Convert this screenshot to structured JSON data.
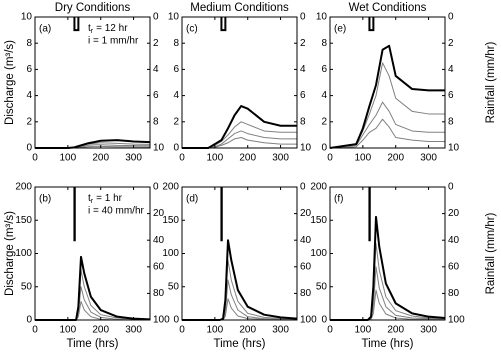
{
  "chart_data": [
    {
      "type": "line",
      "title": "Dry Conditions",
      "panel_label": "(a)",
      "ylabel": "Discharge (m³/s)",
      "duration_label": {
        "symbol": "t",
        "subscript": "r",
        "text": "= 12 hr"
      },
      "intensity_label": "i = 1 mm/hr",
      "x": [
        0,
        80,
        100,
        120,
        140,
        160,
        180,
        200,
        250,
        300,
        350
      ],
      "series": [
        {
          "color": "#000000",
          "line_width": 2,
          "values": [
            0,
            0,
            0,
            0.05,
            0.2,
            0.35,
            0.45,
            0.55,
            0.6,
            0.5,
            0.45
          ]
        },
        {
          "color": "#808080",
          "line_width": 1,
          "values": [
            0,
            0,
            0,
            0.02,
            0.15,
            0.3,
            0.35,
            0.4,
            0.35,
            0.3,
            0.28
          ]
        },
        {
          "color": "#808080",
          "line_width": 1,
          "values": [
            0,
            0,
            0,
            0.02,
            0.1,
            0.2,
            0.25,
            0.25,
            0.2,
            0.18,
            0.17
          ]
        },
        {
          "color": "#808080",
          "line_width": 1,
          "values": [
            0,
            0,
            0,
            0,
            0.05,
            0.1,
            0.12,
            0.12,
            0.1,
            0.09,
            0.08
          ]
        }
      ],
      "rain": {
        "start": 120,
        "end": 132,
        "intensity": 1
      },
      "xlim": [
        0,
        350
      ],
      "xticks": [
        0,
        100,
        200,
        300
      ],
      "ylim": [
        0,
        10
      ],
      "yticks": [
        0,
        2,
        4,
        6,
        8,
        10
      ],
      "y2lim": [
        10,
        0
      ],
      "y2ticks": [
        0,
        2,
        4,
        6,
        8,
        10
      ]
    },
    {
      "type": "line",
      "title": "Medium Conditions",
      "panel_label": "(c)",
      "x": [
        0,
        80,
        100,
        120,
        140,
        160,
        180,
        200,
        250,
        300,
        350
      ],
      "series": [
        {
          "color": "#000000",
          "line_width": 2,
          "values": [
            0,
            0,
            0.3,
            0.6,
            1.5,
            2.5,
            3.2,
            3.0,
            2.0,
            1.7,
            1.7
          ]
        },
        {
          "color": "#808080",
          "line_width": 1,
          "values": [
            0,
            0,
            0.2,
            0.5,
            1.0,
            1.6,
            2.0,
            1.8,
            1.3,
            1.2,
            1.2
          ]
        },
        {
          "color": "#808080",
          "line_width": 1,
          "values": [
            0,
            0,
            0.1,
            0.3,
            0.7,
            1.1,
            1.3,
            1.1,
            0.8,
            0.7,
            0.7
          ]
        },
        {
          "color": "#808080",
          "line_width": 1,
          "values": [
            0,
            0,
            0.05,
            0.2,
            0.4,
            0.7,
            0.8,
            0.6,
            0.4,
            0.3,
            0.3
          ]
        }
      ],
      "rain": {
        "start": 120,
        "end": 132,
        "intensity": 1
      },
      "xlim": [
        0,
        350
      ],
      "xticks": [
        0,
        100,
        200,
        300
      ],
      "ylim": [
        0,
        10
      ],
      "yticks": [
        0,
        2,
        4,
        6,
        8,
        10
      ],
      "y2lim": [
        10,
        0
      ],
      "y2ticks": [
        0,
        2,
        4,
        6,
        8,
        10
      ]
    },
    {
      "type": "line",
      "title": "Wet Conditions",
      "panel_label": "(e)",
      "y2label": "Rainfall (mm/hr)",
      "x": [
        0,
        80,
        100,
        120,
        140,
        160,
        180,
        200,
        250,
        300,
        350
      ],
      "series": [
        {
          "color": "#000000",
          "line_width": 2,
          "values": [
            0,
            0.3,
            1.5,
            3.2,
            4.8,
            7.5,
            7.8,
            5.5,
            4.5,
            4.4,
            4.4
          ]
        },
        {
          "color": "#808080",
          "line_width": 1,
          "values": [
            0,
            0.3,
            1.3,
            2.6,
            4.0,
            6.5,
            5.5,
            3.8,
            2.8,
            2.6,
            2.6
          ]
        },
        {
          "color": "#808080",
          "line_width": 1,
          "values": [
            0,
            0.2,
            1.0,
            1.8,
            2.5,
            3.5,
            2.8,
            1.8,
            1.3,
            1.2,
            1.2
          ]
        },
        {
          "color": "#808080",
          "line_width": 1,
          "values": [
            0,
            0.1,
            0.6,
            1.2,
            1.5,
            2.2,
            1.6,
            0.8,
            0.6,
            0.5,
            0.5
          ]
        }
      ],
      "rain": {
        "start": 120,
        "end": 132,
        "intensity": 1
      },
      "xlim": [
        0,
        350
      ],
      "xticks": [
        0,
        100,
        200,
        300
      ],
      "ylim": [
        0,
        10
      ],
      "yticks": [
        0,
        2,
        4,
        6,
        8,
        10
      ],
      "y2lim": [
        10,
        0
      ],
      "y2ticks": [
        0,
        2,
        4,
        6,
        8,
        10
      ]
    },
    {
      "type": "line",
      "panel_label": "(b)",
      "ylabel": "Discharge (m³/s)",
      "xlabel": "Time (hrs)",
      "duration_label": {
        "symbol": "t",
        "subscript": "r",
        "text": "= 1 hr"
      },
      "intensity_label": "i = 40 mm/hr",
      "x": [
        0,
        100,
        115,
        125,
        132,
        140,
        150,
        170,
        200,
        250,
        300,
        350
      ],
      "series": [
        {
          "color": "#000000",
          "line_width": 2,
          "values": [
            0,
            0,
            0,
            0,
            20,
            95,
            70,
            35,
            15,
            5,
            2,
            1
          ]
        },
        {
          "color": "#808080",
          "line_width": 1,
          "values": [
            0,
            0,
            0,
            0,
            15,
            75,
            50,
            22,
            8,
            3,
            1,
            0
          ]
        },
        {
          "color": "#808080",
          "line_width": 1,
          "values": [
            0,
            0,
            0,
            0,
            10,
            50,
            30,
            12,
            4,
            1,
            0,
            0
          ]
        },
        {
          "color": "#808080",
          "line_width": 1,
          "values": [
            0,
            0,
            0,
            0,
            5,
            28,
            15,
            5,
            1,
            0,
            0,
            0
          ]
        }
      ],
      "rain": {
        "start": 120,
        "end": 121,
        "intensity": 40
      },
      "xlim": [
        0,
        350
      ],
      "xticks": [
        0,
        100,
        200,
        300
      ],
      "ylim": [
        0,
        200
      ],
      "yticks": [
        0,
        50,
        100,
        150,
        200
      ],
      "y2lim": [
        100,
        0
      ],
      "y2ticks": [
        0,
        20,
        40,
        60,
        80,
        100
      ]
    },
    {
      "type": "line",
      "panel_label": "(d)",
      "xlabel": "Time (hrs)",
      "x": [
        0,
        100,
        115,
        125,
        132,
        140,
        150,
        170,
        200,
        250,
        300,
        350
      ],
      "series": [
        {
          "color": "#000000",
          "line_width": 2,
          "values": [
            0,
            0,
            0,
            2,
            30,
            120,
            90,
            45,
            20,
            8,
            4,
            2
          ]
        },
        {
          "color": "#808080",
          "line_width": 1,
          "values": [
            0,
            0,
            0,
            1,
            20,
            90,
            60,
            28,
            10,
            4,
            2,
            1
          ]
        },
        {
          "color": "#808080",
          "line_width": 1,
          "values": [
            0,
            0,
            0,
            1,
            12,
            60,
            38,
            15,
            5,
            2,
            1,
            0
          ]
        },
        {
          "color": "#808080",
          "line_width": 1,
          "values": [
            0,
            0,
            0,
            0,
            6,
            32,
            18,
            6,
            2,
            1,
            0,
            0
          ]
        }
      ],
      "rain": {
        "start": 120,
        "end": 121,
        "intensity": 40
      },
      "xlim": [
        0,
        350
      ],
      "xticks": [
        0,
        100,
        200,
        300
      ],
      "ylim": [
        0,
        200
      ],
      "yticks": [
        0,
        50,
        100,
        150,
        200
      ],
      "y2lim": [
        100,
        0
      ],
      "y2ticks": [
        0,
        20,
        40,
        60,
        80,
        100
      ]
    },
    {
      "type": "line",
      "panel_label": "(f)",
      "xlabel": "Time (hrs)",
      "y2label": "Rainfall (mm/hr)",
      "x": [
        0,
        100,
        115,
        125,
        132,
        140,
        150,
        170,
        200,
        250,
        300,
        350
      ],
      "series": [
        {
          "color": "#000000",
          "line_width": 2,
          "values": [
            0,
            0,
            0,
            5,
            50,
            155,
            110,
            55,
            25,
            10,
            5,
            3
          ]
        },
        {
          "color": "#808080",
          "line_width": 1,
          "values": [
            0,
            0,
            0,
            3,
            35,
            115,
            75,
            35,
            14,
            6,
            3,
            2
          ]
        },
        {
          "color": "#808080",
          "line_width": 1,
          "values": [
            0,
            0,
            0,
            2,
            20,
            80,
            48,
            20,
            7,
            3,
            2,
            1
          ]
        },
        {
          "color": "#808080",
          "line_width": 1,
          "values": [
            0,
            0,
            0,
            1,
            10,
            45,
            25,
            9,
            3,
            1,
            1,
            0
          ]
        }
      ],
      "rain": {
        "start": 120,
        "end": 121,
        "intensity": 40
      },
      "xlim": [
        0,
        350
      ],
      "xticks": [
        0,
        100,
        200,
        300
      ],
      "ylim": [
        0,
        200
      ],
      "yticks": [
        0,
        50,
        100,
        150,
        200
      ],
      "y2lim": [
        100,
        0
      ],
      "y2ticks": [
        0,
        20,
        40,
        60,
        80,
        100
      ]
    }
  ]
}
